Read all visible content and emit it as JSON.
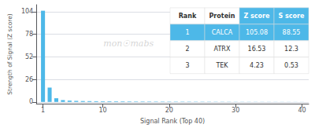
{
  "chart_data": {
    "type": "bar",
    "x": [
      1,
      2,
      3,
      4,
      5,
      6,
      7,
      8,
      9,
      10,
      11,
      12,
      13,
      14,
      15,
      16,
      17,
      18,
      19,
      20,
      21,
      22,
      23,
      24,
      25,
      26,
      27,
      28,
      29,
      30,
      31,
      32,
      33,
      34,
      35,
      36,
      37,
      38,
      39,
      40
    ],
    "values": [
      105.08,
      16.53,
      4.23,
      2.1,
      1.5,
      1.2,
      1.0,
      0.9,
      0.8,
      0.75,
      0.7,
      0.65,
      0.6,
      0.55,
      0.5,
      0.48,
      0.45,
      0.42,
      0.4,
      0.38,
      0.36,
      0.34,
      0.32,
      0.3,
      0.28,
      0.26,
      0.24,
      0.22,
      0.2,
      0.18,
      0.17,
      0.16,
      0.15,
      0.14,
      0.13,
      0.12,
      0.11,
      0.1,
      0.09,
      0.08
    ],
    "color": "#4db8e8",
    "xlabel": "Signal Rank (Top 40)",
    "ylabel": "Strength of Signal (Z score)",
    "xlim": [
      0,
      41
    ],
    "xticks": [
      1,
      10,
      20,
      30,
      40
    ],
    "ylim": [
      -2,
      112
    ],
    "yticks": [
      0,
      26,
      52,
      78,
      104
    ],
    "grid": true,
    "watermark": "mon☉mabs",
    "table": {
      "col_labels": [
        "Rank",
        "Protein",
        "Z score",
        "S score"
      ],
      "rows": [
        [
          "1",
          "CALCA",
          "105.08",
          "88.55"
        ],
        [
          "2",
          "ATRX",
          "16.53",
          "12.3"
        ],
        [
          "3",
          "TEK",
          "4.23",
          "0.53"
        ]
      ]
    }
  }
}
